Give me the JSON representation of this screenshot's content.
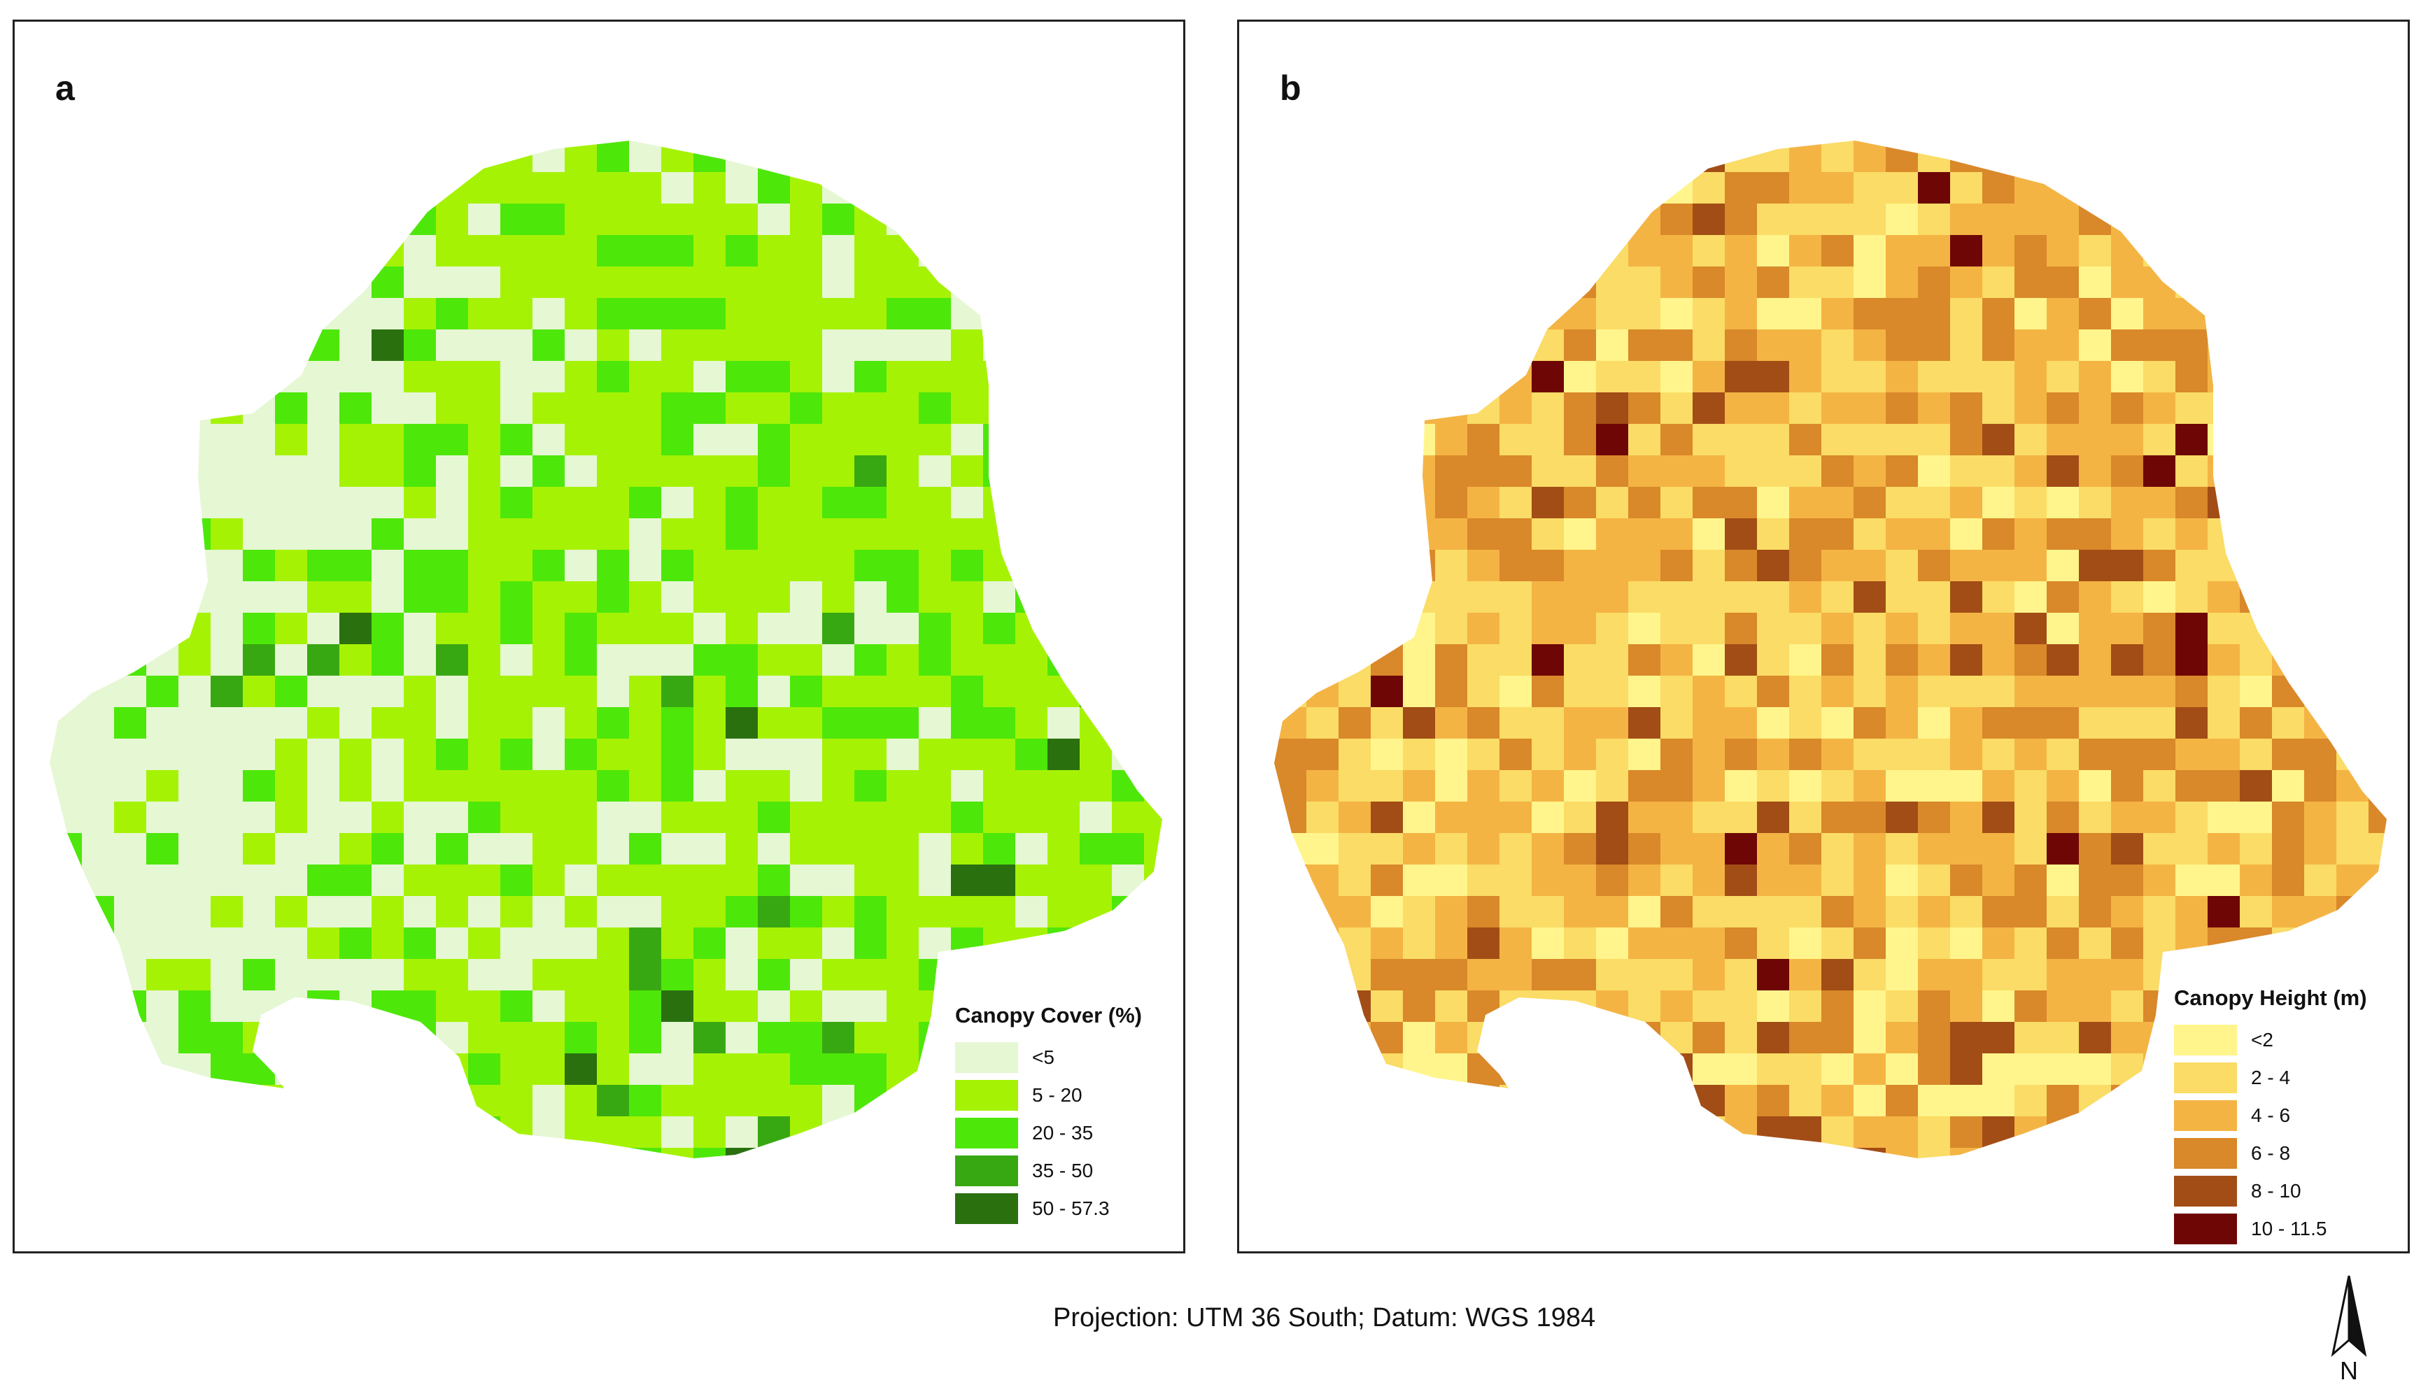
{
  "panels": [
    {
      "id": "a",
      "letter": "a",
      "legend_title": "Canopy Cover (%)",
      "classes": [
        {
          "label": "<5",
          "color": "#e6f7d4"
        },
        {
          "label": "5 - 20",
          "color": "#a6f205"
        },
        {
          "label": "20 - 35",
          "color": "#4ee70a"
        },
        {
          "label": "35 - 50",
          "color": "#38a812"
        },
        {
          "label": "50 - 57.3",
          "color": "#2a700f"
        }
      ]
    },
    {
      "id": "b",
      "letter": "b",
      "legend_title": "Canopy Height (m)",
      "classes": [
        {
          "label": "<2",
          "color": "#fff58c"
        },
        {
          "label": "2 - 4",
          "color": "#fadc66"
        },
        {
          "label": "4 - 6",
          "color": "#f4b444"
        },
        {
          "label": "6 - 8",
          "color": "#d9882a"
        },
        {
          "label": "8 - 10",
          "color": "#a24d16"
        },
        {
          "label": "10 - 11.5",
          "color": "#6e0606"
        }
      ]
    }
  ],
  "footer": {
    "projection_note": "Projection: UTM 36 South; Datum: WGS 1984"
  },
  "north_arrow": {
    "label": "N",
    "icon": "north-arrow-icon"
  }
}
